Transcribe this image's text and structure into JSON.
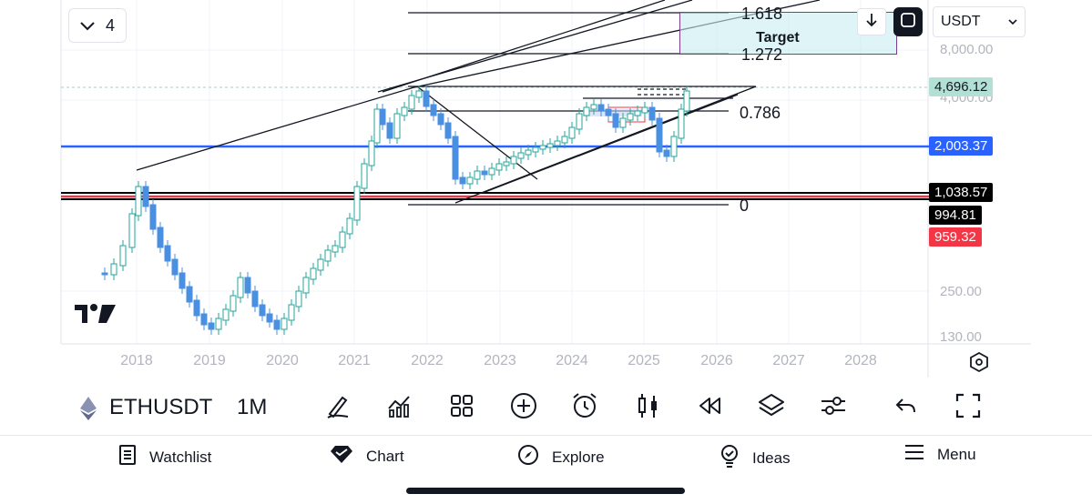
{
  "header": {
    "indicator_count": "4",
    "currency": "USDT"
  },
  "chart": {
    "target_label": "Target",
    "fib_levels": [
      "1.618",
      "1.272",
      "0.786",
      "0"
    ],
    "price_axis": [
      "8,000.00",
      "4,000.00",
      "250.00",
      "130.00"
    ],
    "price_tags": {
      "current": {
        "value": "4,696.12",
        "bg": "#b2e0d4",
        "fg": "#131722"
      },
      "blue": {
        "value": "2,003.37",
        "bg": "#2962ff",
        "fg": "#ffffff"
      },
      "black1": {
        "value": "1,038.57",
        "bg": "#000000",
        "fg": "#ffffff"
      },
      "black2": {
        "value": "994.81",
        "bg": "#000000",
        "fg": "#ffffff"
      },
      "red": {
        "value": "959.32",
        "bg": "#f23645",
        "fg": "#ffffff"
      }
    },
    "years": [
      "2018",
      "2019",
      "2020",
      "2021",
      "2022",
      "2023",
      "2024",
      "2025",
      "2026",
      "2027",
      "2028"
    ],
    "colors": {
      "up": "#26a69a",
      "down": "#4a90e2",
      "blue_line": "#2962ff",
      "red_line": "#f23645"
    }
  },
  "toolbar": {
    "symbol": "ETHUSDT",
    "interval": "1M",
    "tools": [
      "draw-icon",
      "indicators-icon",
      "templates-icon",
      "add-icon",
      "alert-icon",
      "candle-type-icon",
      "replay-icon",
      "layers-icon",
      "settings-sliders-icon",
      "undo-icon",
      "fullscreen-icon"
    ]
  },
  "nav": {
    "watchlist": "Watchlist",
    "chart": "Chart",
    "explore": "Explore",
    "ideas": "Ideas",
    "menu": "Menu"
  }
}
